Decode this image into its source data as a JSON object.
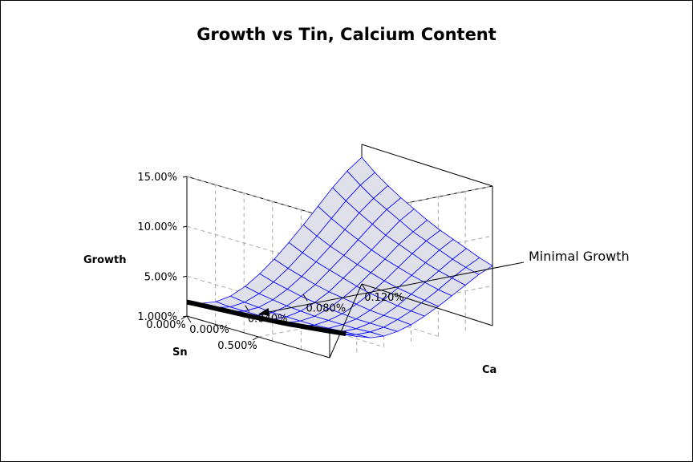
{
  "chart_data": {
    "type": "surface",
    "title": "Growth vs Tin, Calcium Content",
    "zlabel": "Growth",
    "xlabel": "Ca",
    "ylabel": "Sn",
    "z_ticks": [
      "1.000%",
      "5.00%",
      "10.00%",
      "15.00%"
    ],
    "z_tick_values": [
      1.0,
      5.0,
      10.0,
      15.0
    ],
    "x_ticks": [
      "0.000%",
      "0.040%",
      "0.080%",
      "0.120%"
    ],
    "x_tick_values": [
      0.0,
      0.04,
      0.08,
      0.12
    ],
    "y_ticks": [
      "0.000%",
      "0.500%"
    ],
    "y_tick_values": [
      0.0,
      0.5
    ],
    "xlim": [
      0.0,
      0.12
    ],
    "ylim": [
      0.0,
      1.0
    ],
    "zlim": [
      1.0,
      15.0
    ],
    "grid_x": [
      0.0,
      0.01,
      0.02,
      0.03,
      0.04,
      0.05,
      0.06,
      0.07,
      0.08,
      0.09,
      0.1,
      0.11,
      0.12
    ],
    "grid_y": [
      0.0,
      0.1,
      0.2,
      0.3,
      0.4,
      0.5,
      0.6,
      0.7,
      0.8,
      0.9,
      1.0
    ],
    "z": [
      [
        2.4,
        2.0,
        1.9,
        2.2,
        2.9,
        3.9,
        5.1,
        6.5,
        8.0,
        9.6,
        11.2,
        12.6,
        13.7
      ],
      [
        2.5,
        2.0,
        1.8,
        2.0,
        2.6,
        3.5,
        4.6,
        5.9,
        7.3,
        8.8,
        10.3,
        11.6,
        12.6
      ],
      [
        2.6,
        2.0,
        1.8,
        1.9,
        2.4,
        3.2,
        4.2,
        5.4,
        6.7,
        8.1,
        9.5,
        10.7,
        11.7
      ],
      [
        2.7,
        2.1,
        1.8,
        1.8,
        2.2,
        2.9,
        3.8,
        5.0,
        6.2,
        7.5,
        8.8,
        10.0,
        10.9
      ],
      [
        2.8,
        2.2,
        1.8,
        1.8,
        2.1,
        2.7,
        3.5,
        4.6,
        5.7,
        6.9,
        8.1,
        9.3,
        10.2
      ],
      [
        3.0,
        2.3,
        1.9,
        1.8,
        2.0,
        2.5,
        3.3,
        4.2,
        5.3,
        6.4,
        7.6,
        8.6,
        9.5
      ],
      [
        3.2,
        2.4,
        2.0,
        1.8,
        2.0,
        2.4,
        3.1,
        3.9,
        4.9,
        6.0,
        7.1,
        8.1,
        8.9
      ],
      [
        3.4,
        2.6,
        2.1,
        1.9,
        2.0,
        2.3,
        2.9,
        3.7,
        4.6,
        5.6,
        6.6,
        7.6,
        8.4
      ],
      [
        3.6,
        2.8,
        2.2,
        2.0,
        2.0,
        2.3,
        2.8,
        3.5,
        4.4,
        5.3,
        6.2,
        7.1,
        7.9
      ],
      [
        3.8,
        3.0,
        2.4,
        2.1,
        2.1,
        2.3,
        2.8,
        3.4,
        4.2,
        5.0,
        5.9,
        6.7,
        7.4
      ],
      [
        4.0,
        3.2,
        2.6,
        2.2,
        2.1,
        2.3,
        2.7,
        3.3,
        4.0,
        4.8,
        5.6,
        6.4,
        7.0
      ]
    ],
    "minimal_line": [
      {
        "ca": 0.0,
        "sn": 0.0
      },
      {
        "ca": 0.012,
        "sn": 1.0
      }
    ],
    "surface_color": "#e0e0ea",
    "mesh_color": "#0000ff",
    "annotation": {
      "text": "Minimal Growth"
    }
  }
}
